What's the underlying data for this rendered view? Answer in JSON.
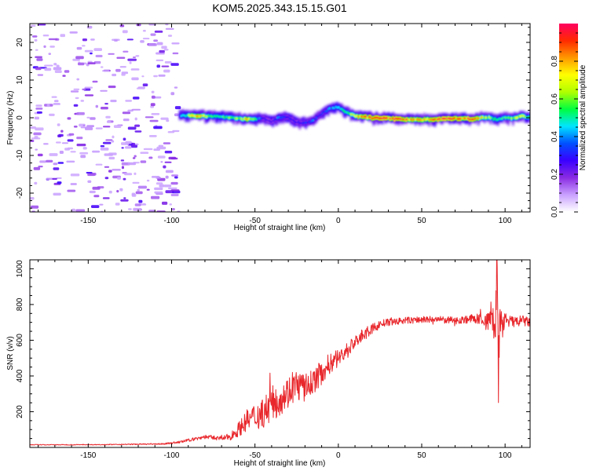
{
  "title": "KOM5.2025.343.15.15.G01",
  "chart_data": [
    {
      "type": "heatmap",
      "xlabel": "Height of straight line (km)",
      "ylabel": "Frequency (Hz)",
      "xlim": [
        -185,
        115
      ],
      "ylim": [
        -25,
        25
      ],
      "x_ticks": [
        -150,
        -100,
        -50,
        0,
        50,
        100
      ],
      "y_ticks": [
        -20,
        -10,
        0,
        10,
        20
      ],
      "colorbar": {
        "label": "Normalized spectral amplitude",
        "range": [
          0,
          1
        ],
        "ticks": [
          0.0,
          0.2,
          0.4,
          0.6,
          0.8
        ],
        "tick_labels": [
          "0.0",
          "0.2",
          "0.4",
          "0.6",
          "0.8"
        ],
        "stops": [
          "#ffffff",
          "#c9a0ff",
          "#8a2be2",
          "#3a00ff",
          "#0050ff",
          "#00e5ff",
          "#00ff40",
          "#b0ff00",
          "#ffff00",
          "#ff9900",
          "#ff2a00",
          "#ff0060"
        ]
      },
      "noise_region_x": [
        -185,
        -95
      ],
      "ridge": {
        "x": [
          -95,
          -85,
          -75,
          -70,
          -60,
          -55,
          -50,
          -45,
          -40,
          -35,
          -30,
          -25,
          -20,
          -15,
          -10,
          -5,
          0,
          5,
          10,
          20,
          30,
          40,
          50,
          60,
          70,
          80,
          90,
          95,
          100,
          105,
          110,
          115
        ],
        "freq": [
          0.6,
          0.5,
          0.4,
          0.3,
          -0.2,
          -0.4,
          -0.3,
          -0.1,
          -1.0,
          0.2,
          0.0,
          -1.2,
          -1.5,
          -0.8,
          1.0,
          2.5,
          2.8,
          1.5,
          0.4,
          0.0,
          -0.2,
          -0.4,
          -0.5,
          -0.3,
          -0.2,
          -0.3,
          0.1,
          -0.5,
          0.0,
          -0.2,
          0.5,
          0.0
        ],
        "amp": [
          0.35,
          0.8,
          0.55,
          0.5,
          0.6,
          0.75,
          0.5,
          0.3,
          0.25,
          0.4,
          0.3,
          0.25,
          0.3,
          0.35,
          0.3,
          0.4,
          0.45,
          0.55,
          0.75,
          0.85,
          0.9,
          0.85,
          0.8,
          0.9,
          0.92,
          0.85,
          0.6,
          0.5,
          0.55,
          0.6,
          0.7,
          0.45
        ]
      }
    },
    {
      "type": "line",
      "xlabel": "Height of straight line (km)",
      "ylabel": "SNR (v/v)",
      "xlim": [
        -185,
        115
      ],
      "ylim": [
        0,
        1050
      ],
      "x_ticks": [
        -150,
        -100,
        -50,
        0,
        50,
        100
      ],
      "y_ticks": [
        200,
        400,
        600,
        800,
        1000
      ],
      "color": "#e8262b",
      "series": [
        {
          "name": "SNR",
          "x": [
            -185,
            -160,
            -140,
            -120,
            -105,
            -100,
            -95,
            -90,
            -85,
            -80,
            -75,
            -70,
            -65,
            -60,
            -55,
            -50,
            -45,
            -40,
            -35,
            -30,
            -25,
            -20,
            -15,
            -10,
            -5,
            0,
            5,
            10,
            15,
            20,
            25,
            30,
            40,
            50,
            60,
            70,
            80,
            85,
            90,
            92,
            94,
            95,
            96,
            97,
            98,
            100,
            105,
            110,
            115
          ],
          "values": [
            15,
            15,
            16,
            18,
            20,
            25,
            30,
            40,
            50,
            60,
            55,
            50,
            60,
            100,
            150,
            170,
            200,
            240,
            280,
            310,
            350,
            330,
            370,
            420,
            470,
            500,
            540,
            590,
            630,
            660,
            690,
            700,
            710,
            715,
            715,
            710,
            720,
            720,
            700,
            760,
            650,
            950,
            380,
            780,
            640,
            720,
            700,
            710,
            700
          ],
          "spread": [
            2,
            2,
            2,
            3,
            4,
            5,
            6,
            8,
            10,
            12,
            12,
            12,
            20,
            40,
            60,
            80,
            90,
            100,
            100,
            90,
            90,
            80,
            70,
            70,
            60,
            50,
            50,
            40,
            35,
            30,
            25,
            20,
            20,
            20,
            20,
            20,
            25,
            30,
            60,
            80,
            120,
            200,
            200,
            140,
            80,
            40,
            30,
            30,
            30
          ]
        }
      ]
    }
  ]
}
